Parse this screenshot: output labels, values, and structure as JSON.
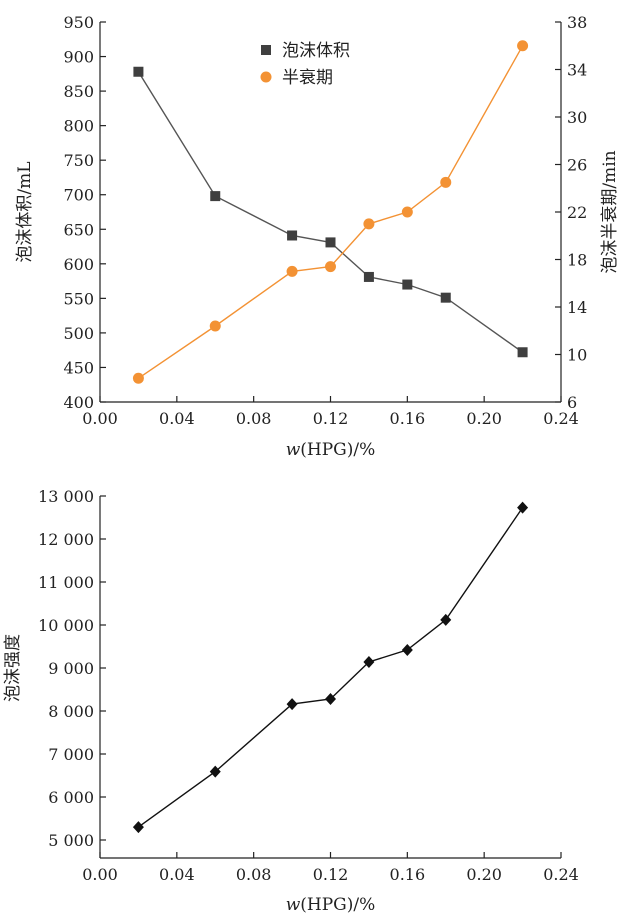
{
  "chart_data": [
    {
      "type": "line",
      "x_label_var": "w",
      "x_label_rest": "(HPG)/%",
      "ylabel_left": "泡沫体积/mL",
      "ylabel_right": "泡沫半衰期/min",
      "x": [
        0.02,
        0.06,
        0.1,
        0.12,
        0.14,
        0.16,
        0.18,
        0.22
      ],
      "xlim": [
        0.0,
        0.24
      ],
      "x_ticks": [
        "0.00",
        "0.04",
        "0.08",
        "0.12",
        "0.16",
        "0.20",
        "0.24"
      ],
      "ylim_left": [
        400,
        950
      ],
      "y_ticks_left": [
        "400",
        "450",
        "500",
        "550",
        "600",
        "650",
        "700",
        "750",
        "800",
        "850",
        "900",
        "950"
      ],
      "ylim_right": [
        6,
        38
      ],
      "y_ticks_right": [
        "6",
        "10",
        "14",
        "18",
        "22",
        "26",
        "30",
        "34",
        "38"
      ],
      "legend_position": "top-center",
      "series": [
        {
          "name": "泡沫体积",
          "axis": "left",
          "marker": "square",
          "color": "#3f3f3f",
          "line_color": "#555555",
          "values": [
            878,
            698,
            641,
            631,
            581,
            570,
            551,
            472
          ]
        },
        {
          "name": "半衰期",
          "axis": "right",
          "marker": "circle",
          "color": "#f39234",
          "line_color": "#f39234",
          "values": [
            8.0,
            12.4,
            17.0,
            17.4,
            21.0,
            22.0,
            24.5,
            36.0
          ]
        }
      ]
    },
    {
      "type": "line",
      "x_label_var": "w",
      "x_label_rest": "(HPG)/%",
      "ylabel": "泡沫强度",
      "x": [
        0.02,
        0.06,
        0.1,
        0.12,
        0.14,
        0.16,
        0.18,
        0.22
      ],
      "xlim": [
        0.0,
        0.24
      ],
      "x_ticks": [
        "0.00",
        "0.04",
        "0.08",
        "0.12",
        "0.16",
        "0.20",
        "0.24"
      ],
      "ylim": [
        5000,
        13000
      ],
      "y_ticks": [
        "5 000",
        "6 000",
        "7 000",
        "8 000",
        "9 000",
        "10 000",
        "11 000",
        "12 000",
        "13 000"
      ],
      "series": [
        {
          "marker": "diamond",
          "color": "#111111",
          "values": [
            5300,
            6590,
            8160,
            8280,
            9140,
            9420,
            10120,
            12730
          ]
        }
      ]
    }
  ]
}
